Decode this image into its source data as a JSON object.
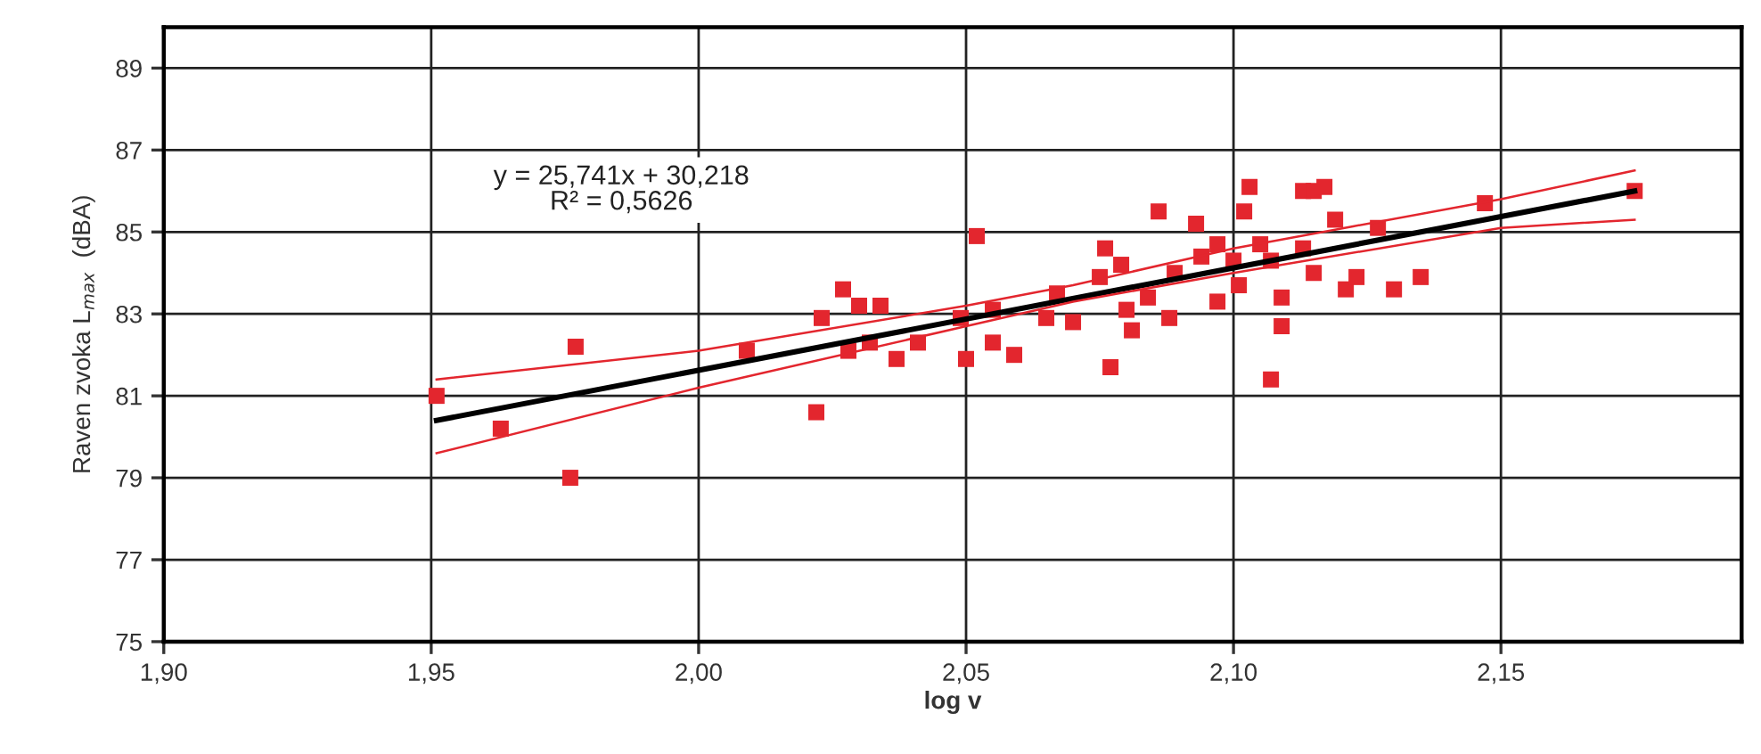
{
  "chart_data": {
    "type": "scatter",
    "xlabel": "log v",
    "ylabel": "Raven zvoka L$_{max}$  (dBA)",
    "xlim": [
      1.9,
      2.195
    ],
    "xticks": [
      {
        "value": 1.9,
        "label": "1,90"
      },
      {
        "value": 1.95,
        "label": "1,95"
      },
      {
        "value": 2.0,
        "label": "2,00"
      },
      {
        "value": 2.05,
        "label": "2,05"
      },
      {
        "value": 2.1,
        "label": "2,10"
      },
      {
        "value": 2.15,
        "label": "2,15"
      }
    ],
    "ylim": [
      75,
      90
    ],
    "yticks": [
      75,
      77,
      79,
      81,
      83,
      85,
      87,
      89
    ],
    "grid": true,
    "annotations": [
      "y = 25,741x + 30,218\nR² = 0,5626"
    ],
    "series": [
      {
        "marker": "square",
        "color": "#e3262e",
        "x": [
          1.951,
          1.963,
          1.976,
          1.977,
          2.009,
          2.022,
          2.023,
          2.027,
          2.03,
          2.034,
          2.028,
          2.032,
          2.037,
          2.041,
          2.049,
          2.05,
          2.052,
          2.055,
          2.059,
          2.055,
          2.067,
          2.065,
          2.07,
          2.075,
          2.076,
          2.079,
          2.08,
          2.081,
          2.084,
          2.088,
          2.089,
          2.077,
          2.086,
          2.093,
          2.094,
          2.097,
          2.097,
          2.101,
          2.102,
          2.103,
          2.1,
          2.105,
          2.107,
          2.109,
          2.109,
          2.107,
          2.113,
          2.115,
          2.113,
          2.115,
          2.117,
          2.119,
          2.127,
          2.121,
          2.123,
          2.13,
          2.135,
          2.147,
          2.175
        ],
        "values": [
          81.0,
          80.2,
          79.0,
          82.2,
          82.1,
          80.6,
          82.9,
          83.6,
          83.2,
          83.2,
          82.1,
          82.3,
          81.9,
          82.3,
          82.9,
          81.9,
          84.9,
          82.3,
          82.0,
          83.1,
          83.5,
          82.9,
          82.8,
          83.9,
          84.6,
          84.2,
          83.1,
          82.6,
          83.4,
          82.9,
          84.0,
          81.7,
          85.5,
          85.2,
          84.4,
          84.7,
          83.3,
          83.7,
          85.5,
          86.1,
          84.3,
          84.7,
          84.3,
          83.4,
          82.7,
          81.4,
          86.0,
          86.0,
          84.6,
          84.0,
          86.1,
          85.3,
          85.1,
          83.6,
          83.9,
          83.6,
          83.9,
          85.7,
          86.0
        ]
      },
      {
        "type": "line",
        "color": "#000000",
        "x": [
          1.951,
          2.175
        ],
        "values": [
          80.4,
          86.0
        ]
      },
      {
        "type": "line",
        "color": "#e3262e",
        "x": [
          1.951,
          2.0,
          2.05,
          2.07,
          2.1,
          2.15,
          2.175
        ],
        "values": [
          81.4,
          82.1,
          83.2,
          83.7,
          84.6,
          85.8,
          86.5
        ]
      },
      {
        "type": "line",
        "color": "#e3262e",
        "x": [
          1.951,
          2.0,
          2.05,
          2.07,
          2.1,
          2.15,
          2.175
        ],
        "values": [
          79.6,
          81.2,
          82.7,
          83.3,
          84.0,
          85.1,
          85.3
        ]
      }
    ]
  }
}
